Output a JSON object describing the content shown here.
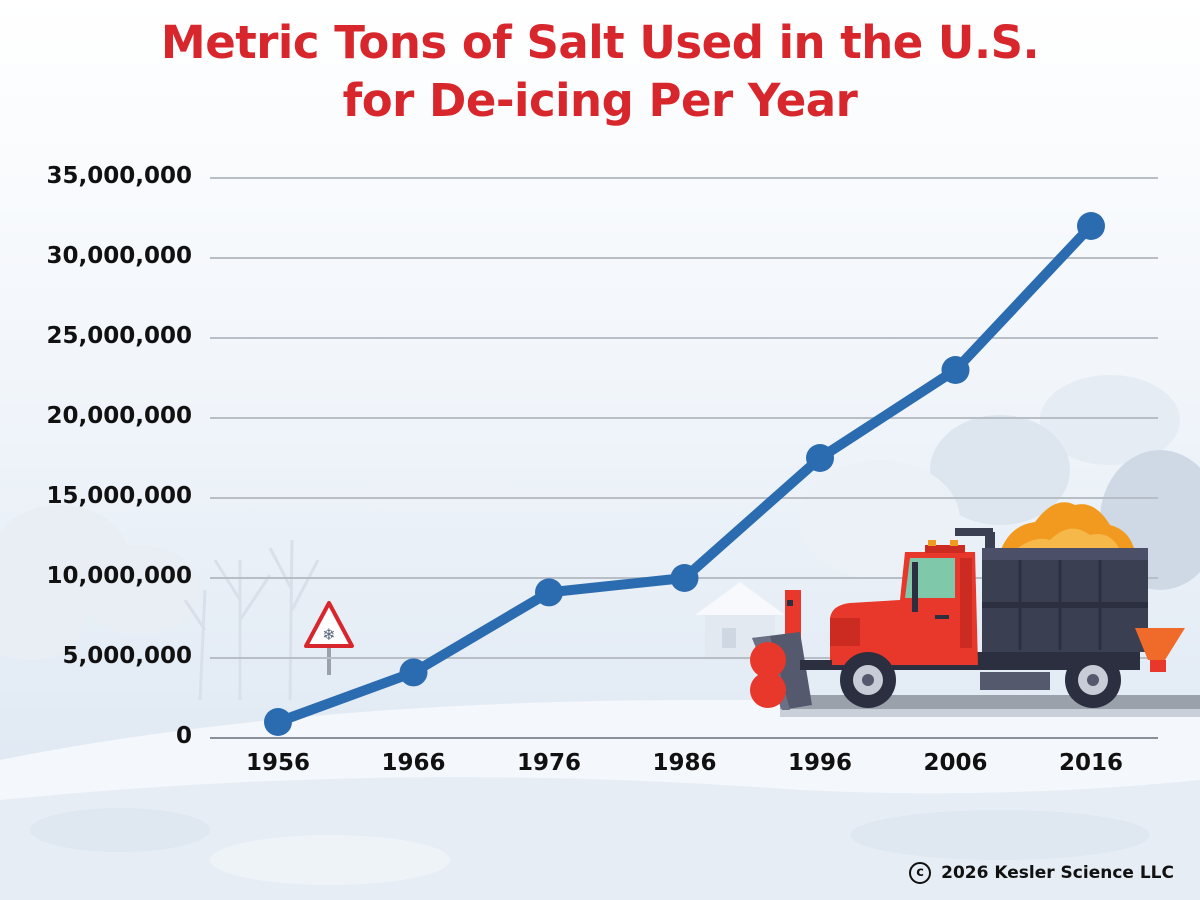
{
  "chart_data": {
    "type": "line",
    "title_lines": [
      "Metric Tons of Salt Used in the U.S.",
      "for De-icing Per Year"
    ],
    "categories": [
      "1956",
      "1966",
      "1976",
      "1986",
      "1996",
      "2006",
      "2016"
    ],
    "values": [
      1000000,
      4100000,
      9100000,
      10000000,
      17500000,
      23000000,
      32000000
    ],
    "y_ticks": [
      0,
      5000000,
      10000000,
      15000000,
      20000000,
      25000000,
      30000000,
      35000000
    ],
    "y_tick_labels": [
      "0",
      "5,000,000",
      "10,000,000",
      "15,000,000",
      "20,000,000",
      "25,000,000",
      "30,000,000",
      "35,000,000"
    ],
    "ylim": [
      0,
      35000000
    ],
    "grid": true,
    "xlabel": "",
    "ylabel": "",
    "legend": "none"
  },
  "colors": {
    "title": "#d7262c",
    "line": "#2b6cb0",
    "grid": "#b8bec6",
    "truck_cab": "#e8372b",
    "truck_bed": "#3b3f52",
    "salt": "#f29a1f"
  },
  "footer": {
    "copyright_symbol": "c",
    "copyright_text": "2026 Kesler Science LLC"
  }
}
